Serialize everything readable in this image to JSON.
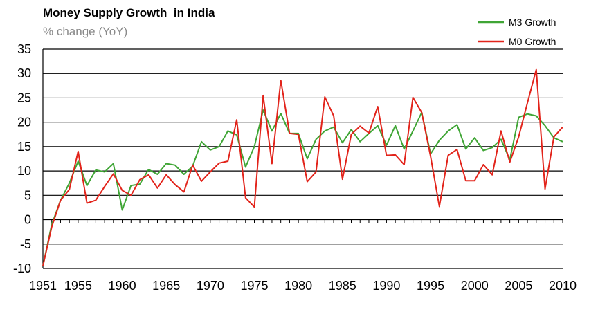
{
  "chart_data": {
    "type": "line",
    "title": "Money Supply Growth  in India",
    "subtitle": "% change (YoY)",
    "xlabel": "",
    "ylabel": "",
    "xlim": [
      1951,
      2010
    ],
    "ylim": [
      -10,
      35
    ],
    "x_ticks": [
      "1951",
      "1955",
      "1960",
      "1965",
      "1970",
      "1975",
      "1980",
      "1985",
      "1990",
      "1995",
      "2000",
      "2005",
      "2010"
    ],
    "y_ticks": [
      "35",
      "30",
      "25",
      "20",
      "15",
      "10",
      "5",
      "0",
      "-5",
      "-10"
    ],
    "grid": true,
    "legend_position": "top-right",
    "x": [
      1951,
      1952,
      1953,
      1954,
      1955,
      1956,
      1957,
      1958,
      1959,
      1960,
      1961,
      1962,
      1963,
      1964,
      1965,
      1966,
      1967,
      1968,
      1969,
      1970,
      1971,
      1972,
      1973,
      1974,
      1975,
      1976,
      1977,
      1978,
      1979,
      1980,
      1981,
      1982,
      1983,
      1984,
      1985,
      1986,
      1987,
      1988,
      1989,
      1990,
      1991,
      1992,
      1993,
      1994,
      1995,
      1996,
      1997,
      1998,
      1999,
      2000,
      2001,
      2002,
      2003,
      2004,
      2005,
      2006,
      2007,
      2008,
      2009,
      2010
    ],
    "series": [
      {
        "name": "M3 Growth",
        "color": "#3fa535",
        "values": [
          -9.5,
          -1,
          4,
          7.5,
          12,
          7,
          10.2,
          9.8,
          11.5,
          2,
          7,
          7.3,
          10.3,
          9.3,
          11.5,
          11.2,
          9.3,
          11,
          16,
          14.3,
          15,
          18.2,
          17.4,
          10.8,
          15,
          22.5,
          18.2,
          21.8,
          17.7,
          17.7,
          12.5,
          16.5,
          18.2,
          19,
          15.8,
          18.5,
          16,
          17.7,
          19.3,
          15.3,
          19.3,
          14.5,
          18.2,
          22,
          13.5,
          16.3,
          18.2,
          19.5,
          14.5,
          16.8,
          14.2,
          14.8,
          16.5,
          12.3,
          21,
          21.7,
          21.3,
          19.3,
          16.8,
          16
        ]
      },
      {
        "name": "M0 Growth",
        "color": "#e2231a",
        "values": [
          -9.5,
          -1.5,
          4,
          6.2,
          14,
          3.4,
          4,
          6.8,
          9.4,
          6,
          5,
          8.2,
          9.2,
          6.5,
          9.2,
          7.2,
          5.7,
          11.2,
          7.9,
          9.8,
          11.6,
          12,
          20.5,
          4.5,
          2.6,
          25.5,
          11.5,
          28.6,
          17.7,
          17.5,
          7.8,
          9.8,
          25.2,
          21.3,
          8.3,
          17.5,
          19.2,
          17.8,
          23.2,
          13.2,
          13.3,
          11.3,
          25.1,
          22,
          13,
          2.7,
          13.2,
          14.4,
          8,
          8,
          11.3,
          9.2,
          18.2,
          11.8,
          17,
          24,
          30.8,
          6.3,
          17,
          19
        ]
      }
    ]
  }
}
